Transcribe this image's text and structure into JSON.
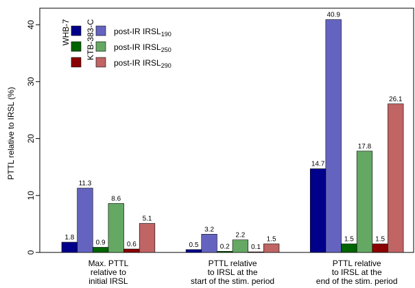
{
  "chart_data": {
    "type": "bar",
    "y_label": "PTTL relative to IRSL (%)",
    "categories": [
      [
        "Max. PTTL",
        "relative to",
        "initial IRSL"
      ],
      [
        "PTTL relative",
        "to IRSL at the",
        "start of the stim. period"
      ],
      [
        "PTTL relative",
        "to IRSL at the",
        "end of the stim. period"
      ]
    ],
    "series": [
      {
        "color": "#00008b",
        "values": [
          1.8,
          0.5,
          14.7
        ]
      },
      {
        "color": "#6464c0",
        "values": [
          11.3,
          3.2,
          40.9
        ]
      },
      {
        "color": "#006400",
        "values": [
          0.9,
          0.2,
          1.5
        ]
      },
      {
        "color": "#64a864",
        "values": [
          8.6,
          2.2,
          17.8
        ]
      },
      {
        "color": "#8b0000",
        "values": [
          0.6,
          0.1,
          1.5
        ]
      },
      {
        "color": "#c06464",
        "values": [
          5.1,
          1.5,
          26.1
        ]
      }
    ],
    "ylim": [
      0,
      42.9
    ],
    "yticks": [
      0,
      10,
      20,
      30,
      40
    ],
    "grid": false,
    "legend": {
      "position": "top-left",
      "columns": [
        "WHB-7",
        "KTB-383-C"
      ],
      "rows": [
        {
          "text": "post-IR IRSL",
          "sub": "190"
        },
        {
          "text": "post-IR IRSL",
          "sub": "250"
        },
        {
          "text": "post-IR IRSL",
          "sub": "290"
        }
      ]
    }
  }
}
